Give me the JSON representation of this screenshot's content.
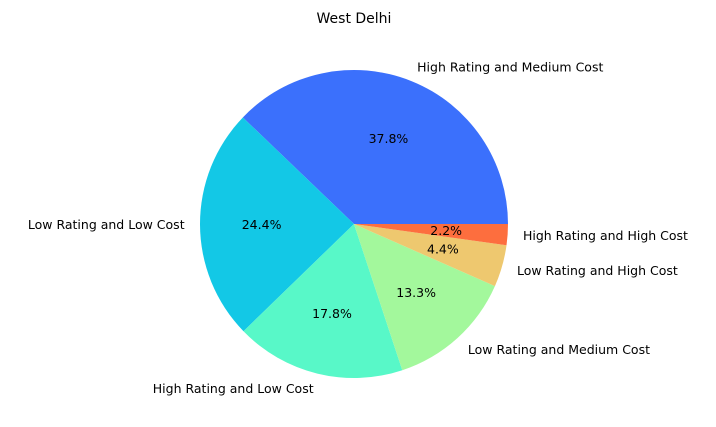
{
  "chart_data": {
    "type": "pie",
    "title": "West Delhi",
    "slices": [
      {
        "label": "High Rating and Medium Cost",
        "percent": 37.8,
        "percent_label": "37.8%",
        "color": "#3b70fc"
      },
      {
        "label": "Low Rating and Low Cost",
        "percent": 24.4,
        "percent_label": "24.4%",
        "color": "#13c8e6"
      },
      {
        "label": "High Rating and Low Cost",
        "percent": 17.8,
        "percent_label": "17.8%",
        "color": "#58f8c8"
      },
      {
        "label": "Low Rating and Medium Cost",
        "percent": 13.3,
        "percent_label": "13.3%",
        "color": "#a3f89c"
      },
      {
        "label": "Low Rating and High Cost",
        "percent": 4.4,
        "percent_label": "4.4%",
        "color": "#eec86f"
      },
      {
        "label": "High Rating and High Cost",
        "percent": 2.2,
        "percent_label": "2.2%",
        "color": "#fd6e3e"
      }
    ],
    "start_angle_deg": 0,
    "direction": "counterclockwise"
  }
}
